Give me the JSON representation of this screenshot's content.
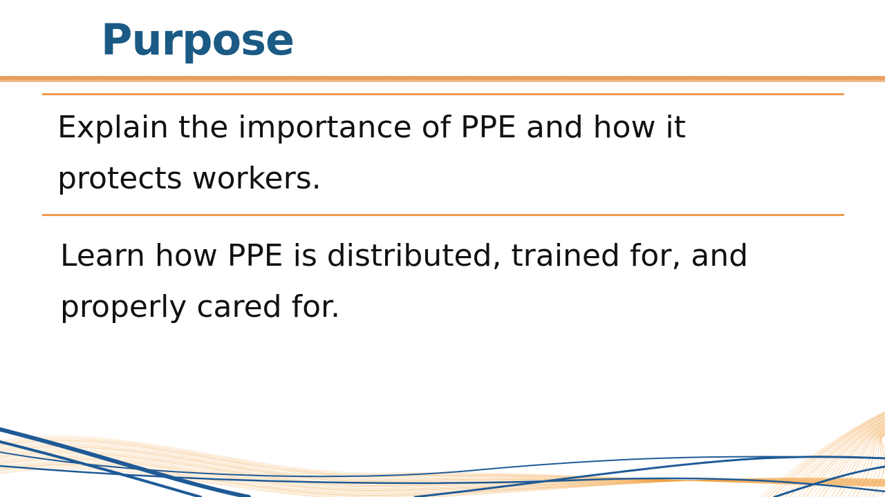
{
  "slide": {
    "title": "Purpose",
    "points": [
      "Explain the importance of PPE and how it protects workers.",
      "Learn how PPE is distributed, trained for, and properly cared for."
    ]
  },
  "colors": {
    "title": "#1b5a84",
    "accent_orange": "#ee9a4a",
    "wave_blue": "#1e5a96",
    "wave_orange": "#f0a040"
  }
}
